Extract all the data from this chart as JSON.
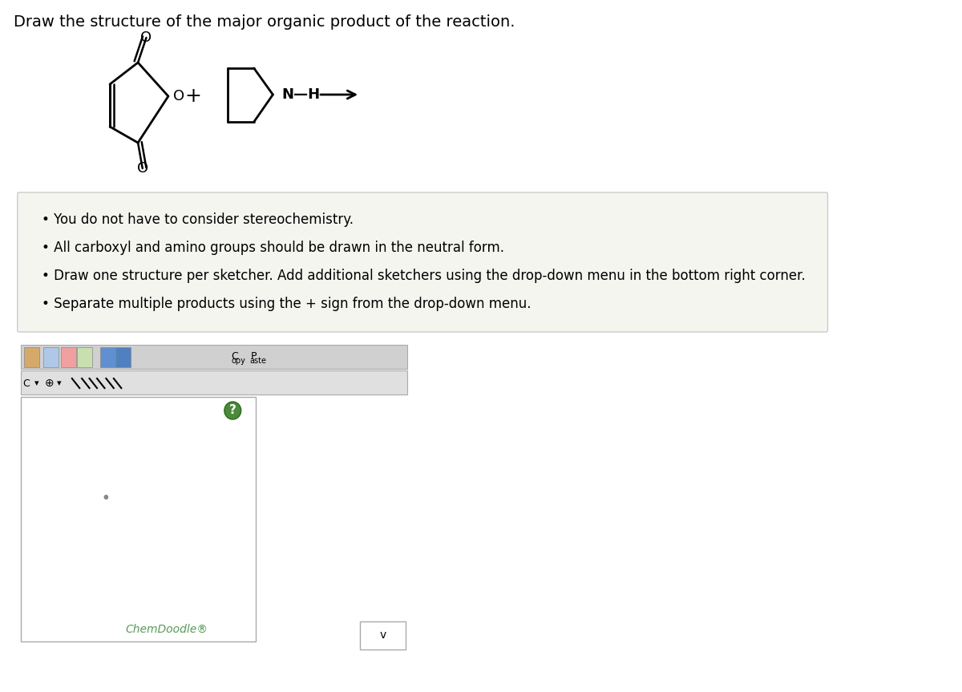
{
  "title": "Draw the structure of the major organic product of the reaction.",
  "title_fontsize": 14,
  "title_color": "#000000",
  "background_color": "#ffffff",
  "bullet_points": [
    "You do not have to consider stereochemistry.",
    "All carboxyl and amino groups should be drawn in the neutral form.",
    "Draw one structure per sketcher. Add additional sketchers using the drop-down menu in the bottom right corner.",
    "Separate multiple products using the + sign from the drop-down menu."
  ],
  "bullet_fontsize": 12,
  "instruction_box_color": "#f0f0f0",
  "chemdoodle_label": "ChemDoodle®",
  "chemdoodle_color": "#5a9a5a",
  "plus_sign": "+",
  "nh_label": "N—H"
}
